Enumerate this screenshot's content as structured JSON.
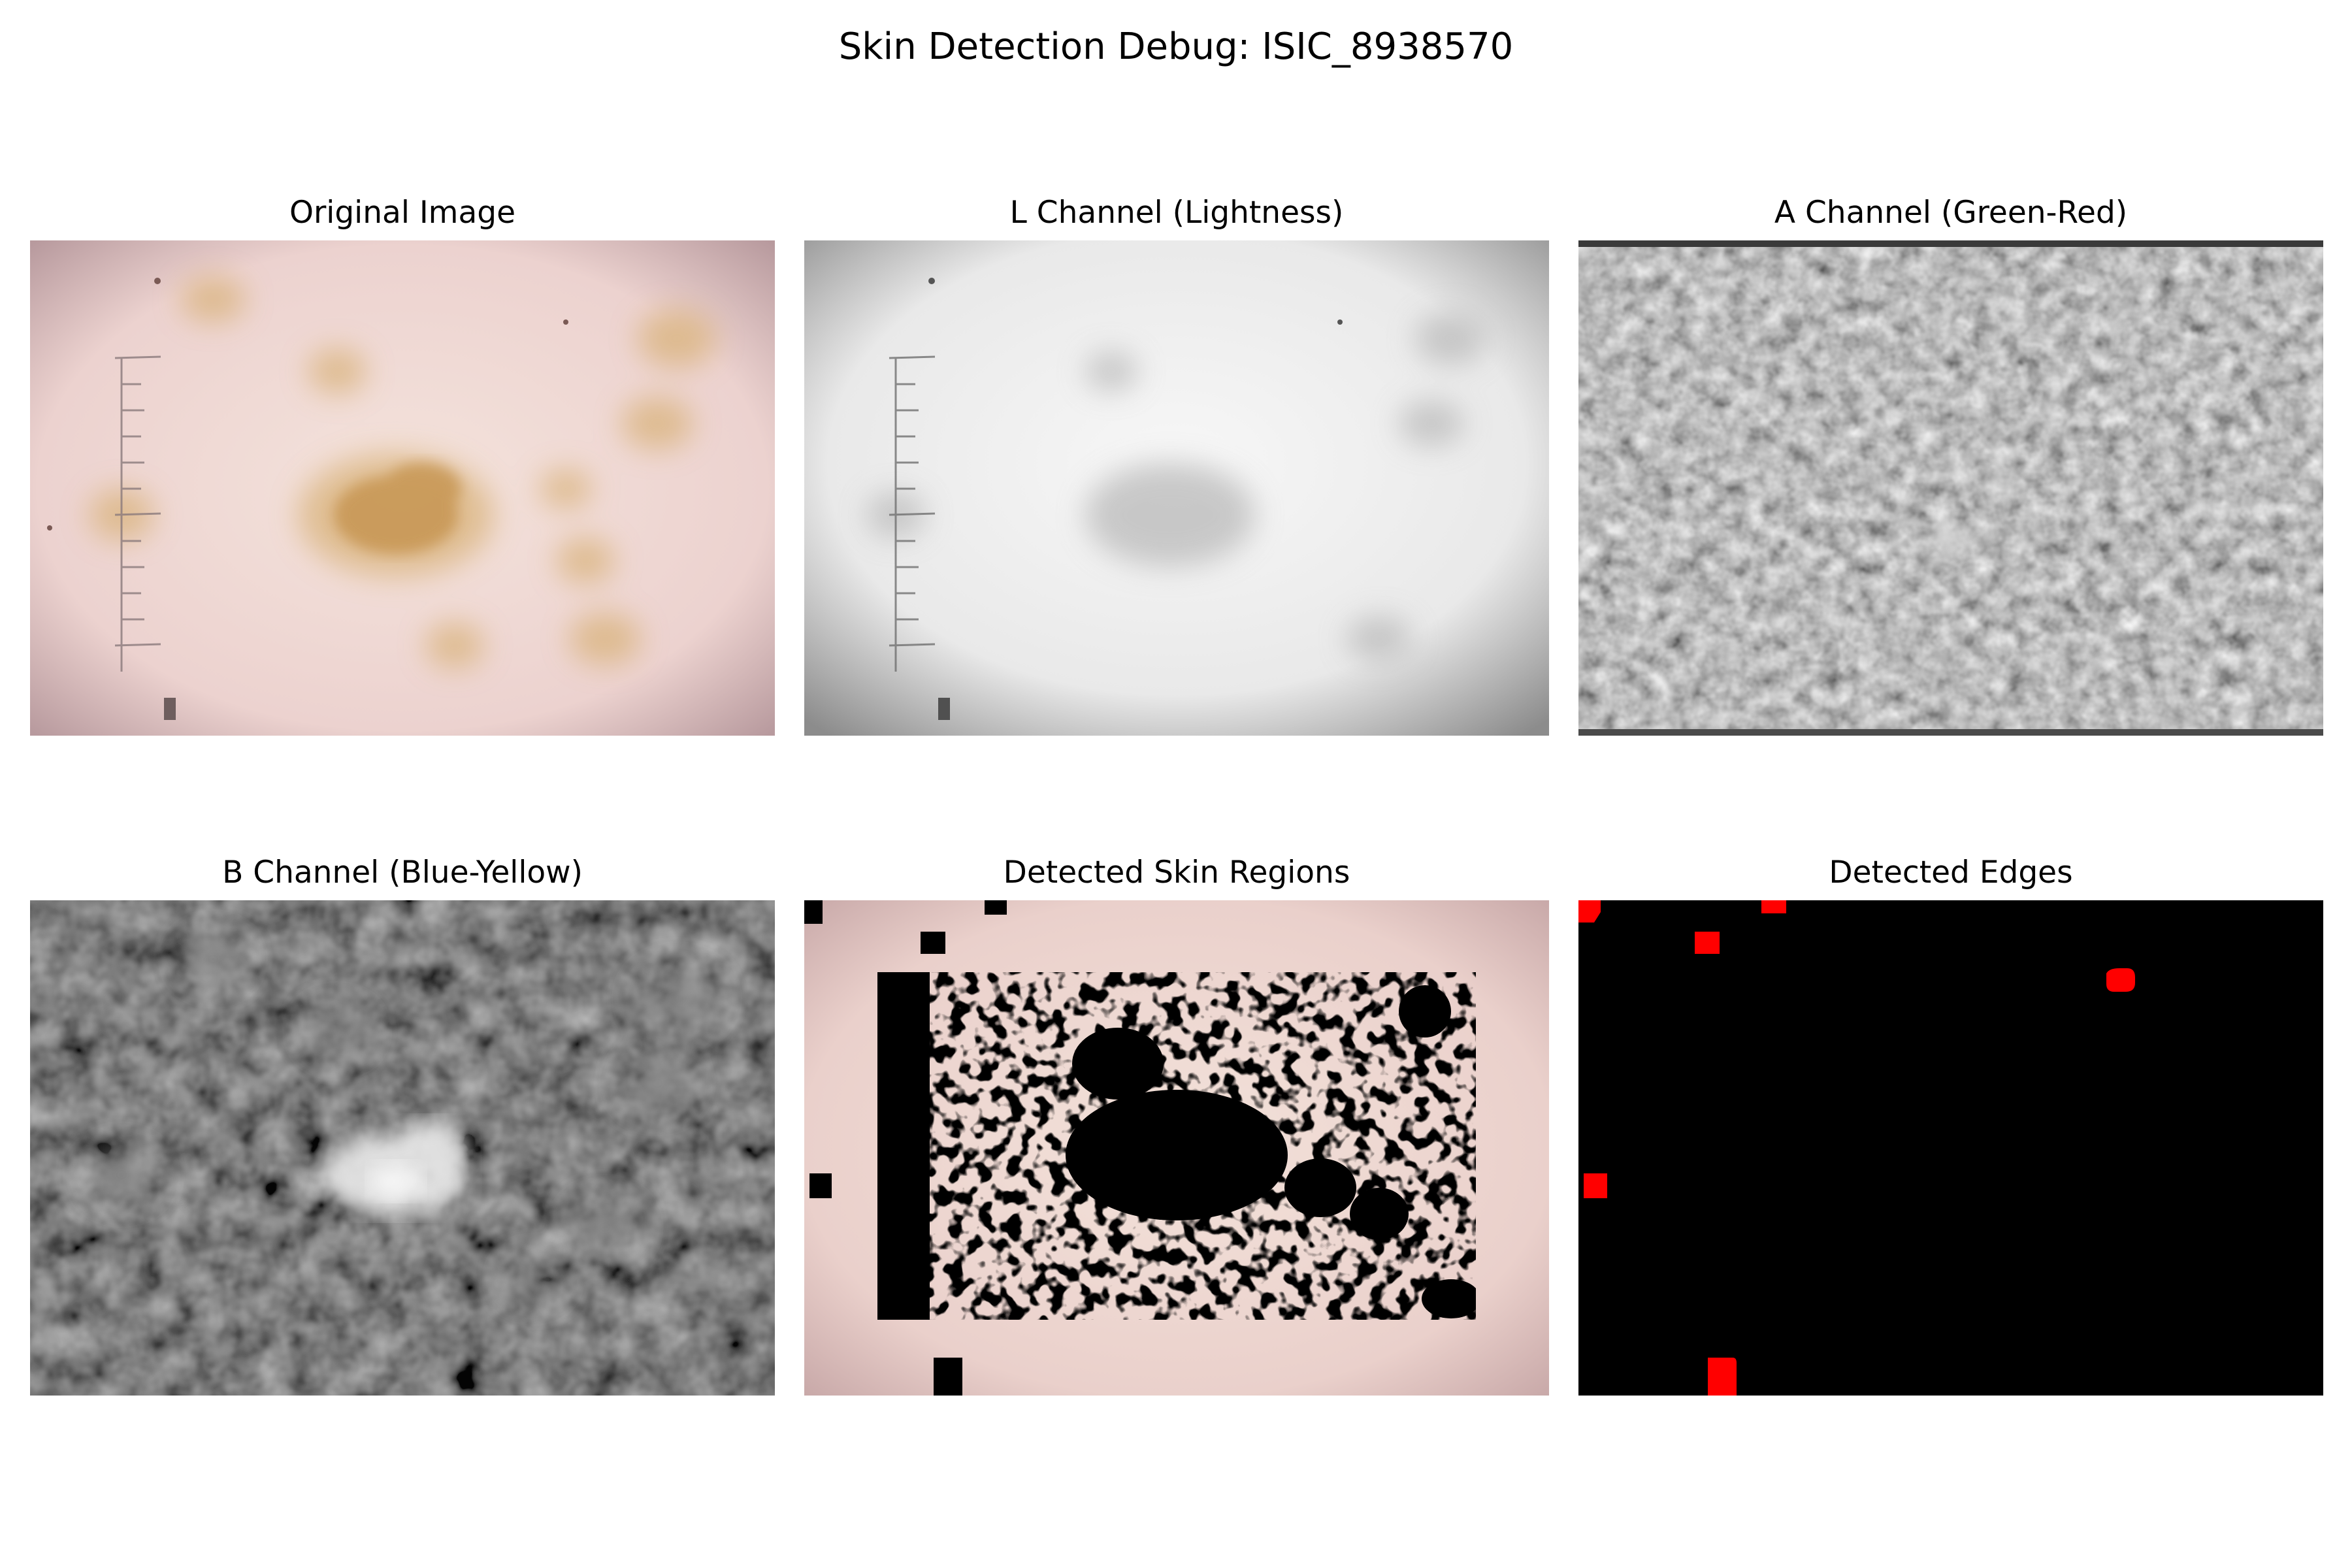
{
  "figure": {
    "title": "Skin Detection Debug: ISIC_8938570"
  },
  "panels": [
    {
      "title": "Original Image",
      "content": "dermoscopy photo of skin with tan lesion and ruler marks"
    },
    {
      "title": "L Channel (Lightness)",
      "content": "grayscale lightness map"
    },
    {
      "title": "A Channel (Green-Red)",
      "content": "mid-gray noisy green-red channel map"
    },
    {
      "title": "B Channel (Blue-Yellow)",
      "content": "dark blurred blue-yellow channel map with bright lesion"
    },
    {
      "title": "Detected Skin Regions",
      "content": "skin photo overlaid with black non-skin mask blobs"
    },
    {
      "title": "Detected Edges",
      "content": "black background with small red edge regions"
    }
  ],
  "colors": {
    "skin": "#ecd0cc",
    "lesion": "#c99a52",
    "edge_red": "#ff0000",
    "mask_black": "#000000"
  }
}
